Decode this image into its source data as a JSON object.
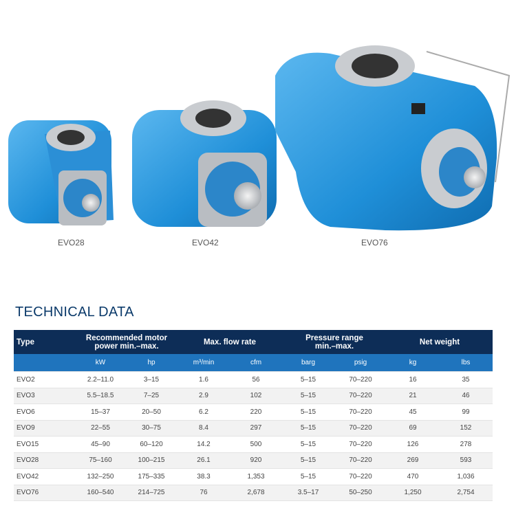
{
  "products": [
    {
      "label": "EVO28"
    },
    {
      "label": "EVO42"
    },
    {
      "label": "EVO76"
    }
  ],
  "section_title": "TECHNICAL DATA",
  "table": {
    "header": [
      "Type",
      "Recommended motor power min.–max.",
      "Max. flow rate",
      "Pressure range min.–max.",
      "Net weight"
    ],
    "units": [
      "kW",
      "hp",
      "m³/min",
      "cfm",
      "barg",
      "psig",
      "kg",
      "lbs"
    ],
    "rows": [
      [
        "EVO2",
        "2.2–11.0",
        "3–15",
        "1.6",
        "56",
        "5–15",
        "70–220",
        "16",
        "35"
      ],
      [
        "EVO3",
        "5.5–18.5",
        "7–25",
        "2.9",
        "102",
        "5–15",
        "70–220",
        "21",
        "46"
      ],
      [
        "EVO6",
        "15–37",
        "20–50",
        "6.2",
        "220",
        "5–15",
        "70–220",
        "45",
        "99"
      ],
      [
        "EVO9",
        "22–55",
        "30–75",
        "8.4",
        "297",
        "5–15",
        "70–220",
        "69",
        "152"
      ],
      [
        "EVO15",
        "45–90",
        "60–120",
        "14.2",
        "500",
        "5–15",
        "70–220",
        "126",
        "278"
      ],
      [
        "EVO28",
        "75–160",
        "100–215",
        "26.1",
        "920",
        "5–15",
        "70–220",
        "269",
        "593"
      ],
      [
        "EVO42",
        "132–250",
        "175–335",
        "38.3",
        "1,353",
        "5–15",
        "70–220",
        "470",
        "1,036"
      ],
      [
        "EVO76",
        "160–540",
        "214–725",
        "76",
        "2,678",
        "3.5–17",
        "50–250",
        "1,250",
        "2,754"
      ]
    ]
  }
}
